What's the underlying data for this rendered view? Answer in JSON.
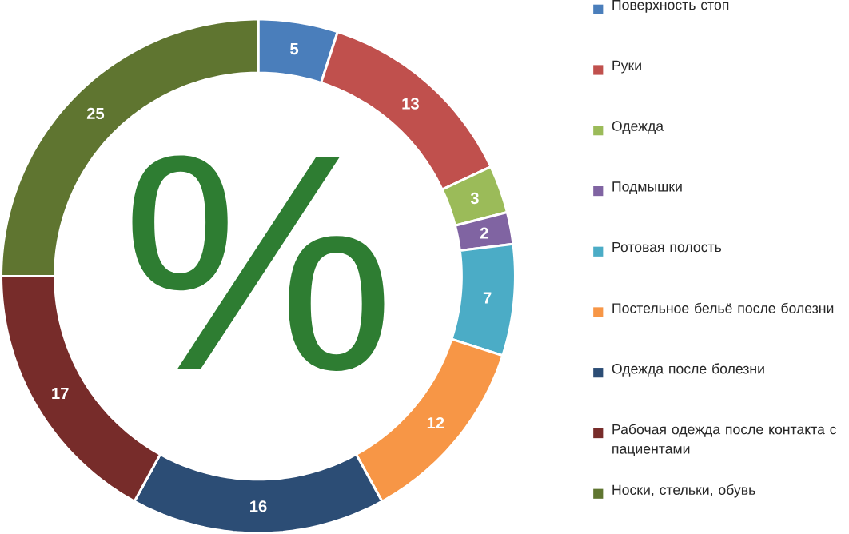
{
  "chart_data": {
    "type": "donut",
    "categories": [
      "Поверхность стоп",
      "Руки",
      "Одежда",
      "Подмышки",
      "Ротовая полость",
      "Постельное бельё после болезни",
      "Одежда после болезни",
      "Рабочая одежда после контакта с пациентами",
      "Носки, стельки, обувь"
    ],
    "values": [
      5,
      13,
      3,
      2,
      7,
      12,
      16,
      17,
      25
    ],
    "colors": [
      "#4a7ebb",
      "#c0504d",
      "#9bbb59",
      "#8064a2",
      "#4bacc6",
      "#f79646",
      "#2c4d75",
      "#772c2a",
      "#5f7530"
    ],
    "data_labels": true,
    "legend": "right",
    "annotations": [
      "%"
    ]
  }
}
